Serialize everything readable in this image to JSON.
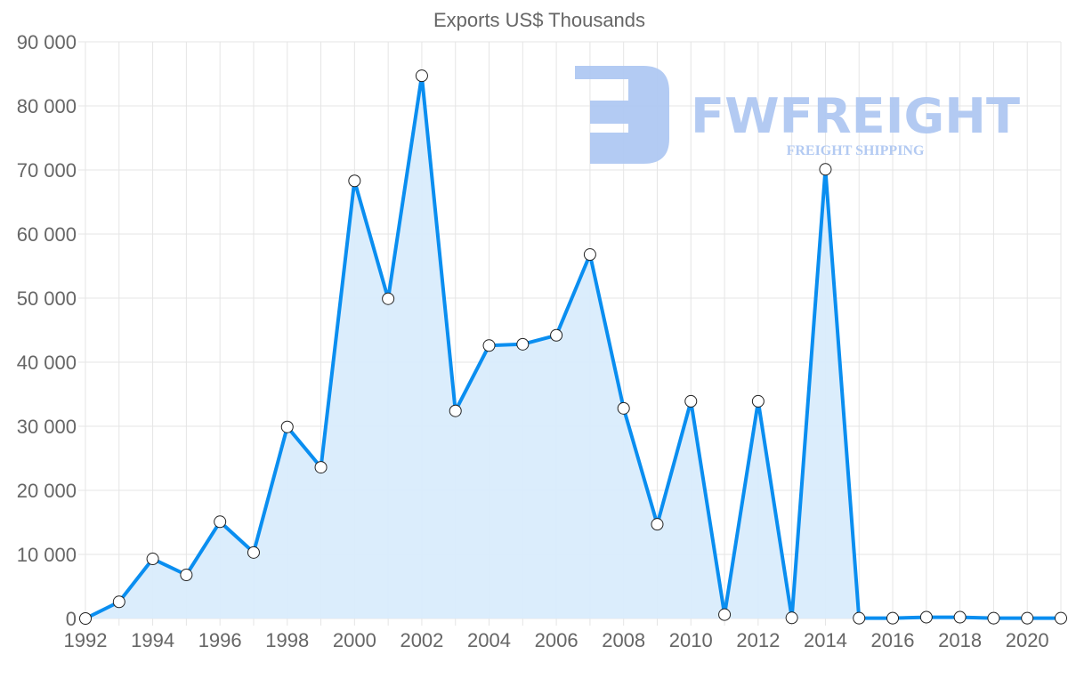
{
  "chart_data": {
    "type": "line",
    "title": "Exports US$ Thousands",
    "xlabel": "",
    "ylabel": "",
    "x": [
      1992,
      1993,
      1994,
      1995,
      1996,
      1997,
      1998,
      1999,
      2000,
      2001,
      2002,
      2003,
      2004,
      2005,
      2006,
      2007,
      2008,
      2009,
      2010,
      2011,
      2012,
      2013,
      2014,
      2015,
      2016,
      2017,
      2018,
      2019,
      2020,
      2021
    ],
    "series": [
      {
        "name": "Exports US$ Thousands",
        "values": [
          0,
          2600,
          9300,
          6800,
          15100,
          10300,
          29900,
          23600,
          68300,
          49900,
          84700,
          32400,
          42600,
          42800,
          44200,
          56800,
          32800,
          14700,
          33900,
          600,
          33900,
          100,
          70100,
          50,
          50,
          200,
          200,
          50,
          50,
          50
        ]
      }
    ],
    "ylim": [
      0,
      90000
    ],
    "xlim": [
      1992,
      2021
    ],
    "yticks": [
      "0",
      "10 000",
      "20 000",
      "30 000",
      "40 000",
      "50 000",
      "60 000",
      "70 000",
      "80 000",
      "90 000"
    ],
    "xticks": [
      "1992",
      "1994",
      "1996",
      "1998",
      "2000",
      "2002",
      "2004",
      "2006",
      "2008",
      "2010",
      "2012",
      "2014",
      "2016",
      "2018",
      "2020"
    ],
    "grid": true,
    "legend": "none",
    "colors": {
      "line": "#0a8ef0",
      "fill": "#d9ecfc",
      "grid": "#e5e5e5",
      "watermark": "#afc8f2"
    }
  },
  "watermark": {
    "brand": "FWFREIGHT",
    "tagline": "FREIGHT SHIPPING"
  }
}
